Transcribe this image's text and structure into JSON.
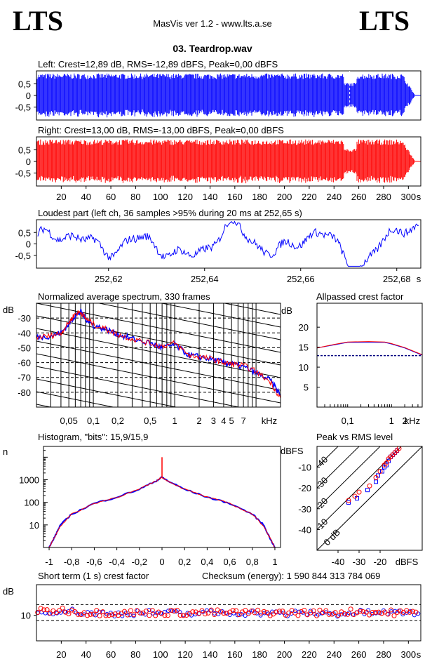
{
  "header": {
    "logo_left": "LTS",
    "logo_right": "LTS",
    "app_title": "MasVis ver 1.2 - www.lts.a.se",
    "file_title": "03. Teardrop.wav"
  },
  "colors": {
    "left": "#0000ff",
    "right": "#ff0000"
  },
  "chart_data": [
    {
      "id": "waveform-left",
      "type": "area",
      "title": "Left: Crest=12,89 dB, RMS=-12,89 dBFS, Peak=0,00 dBFS",
      "yticks": [
        "0,5",
        "0",
        "-0,5"
      ],
      "ylim": [
        -1,
        1
      ],
      "xlim": [
        0,
        310
      ],
      "color": "#0000ff",
      "annotations": [
        "loudest-part marker at 252,65 s"
      ]
    },
    {
      "id": "waveform-right",
      "type": "area",
      "title": "Right: Crest=13,00 dB, RMS=-13,00 dBFS, Peak=0,00 dBFS",
      "yticks": [
        "0,5",
        "0",
        "-0,5"
      ],
      "xticks": [
        "20",
        "40",
        "60",
        "80",
        "100",
        "120",
        "140",
        "160",
        "180",
        "200",
        "220",
        "240",
        "260",
        "280",
        "300",
        "s"
      ],
      "ylim": [
        -1,
        1
      ],
      "xlim": [
        0,
        310
      ],
      "color": "#ff0000"
    },
    {
      "id": "loudest-part",
      "type": "line",
      "title": "Loudest part (left  ch, 36 samples >95% during 20 ms at 252,65 s)",
      "yticks": [
        "0,5",
        "0",
        "-0,5"
      ],
      "xticks": [
        "252,62",
        "252,64",
        "252,66",
        "252,68",
        "s"
      ],
      "xlim": [
        252.605,
        252.685
      ],
      "ylim": [
        -1,
        1
      ],
      "color": "#0000ff"
    },
    {
      "id": "spectrum",
      "type": "line",
      "title": "Normalized average spectrum, 330 frames",
      "ylabel": "dB",
      "yticks": [
        "-30",
        "-40",
        "-50",
        "-60",
        "-70",
        "-80"
      ],
      "xticks": [
        "0,05",
        "0,1",
        "0,2",
        "0,5",
        "1",
        "2",
        "3",
        "4",
        "5",
        "7",
        "kHz"
      ],
      "xscale": "log",
      "xlim": [
        0.02,
        20
      ],
      "ylim": [
        -90,
        -20
      ],
      "series": [
        {
          "color": "#0000ff",
          "x": [
            0.02,
            0.03,
            0.04,
            0.05,
            0.06,
            0.07,
            0.08,
            0.1,
            0.15,
            0.2,
            0.3,
            0.5,
            0.7,
            1,
            1.5,
            2,
            3,
            4,
            5,
            7,
            10,
            15,
            20
          ],
          "y": [
            -43,
            -42,
            -40,
            -34,
            -28,
            -26,
            -30,
            -35,
            -38,
            -41,
            -44,
            -47,
            -50,
            -48,
            -55,
            -56,
            -58,
            -60,
            -61,
            -63,
            -67,
            -72,
            -82
          ]
        },
        {
          "color": "#ff0000",
          "x": [
            0.02,
            0.03,
            0.04,
            0.05,
            0.06,
            0.07,
            0.08,
            0.1,
            0.15,
            0.2,
            0.3,
            0.5,
            0.7,
            1,
            1.5,
            2,
            3,
            4,
            5,
            7,
            10,
            15,
            20
          ],
          "y": [
            -43,
            -42,
            -40,
            -33,
            -27,
            -26,
            -30,
            -34,
            -38,
            -41,
            -44,
            -47,
            -49,
            -47,
            -55,
            -56,
            -58,
            -60,
            -61,
            -62,
            -66,
            -73,
            -84
          ]
        }
      ]
    },
    {
      "id": "allpassed-crest",
      "type": "line",
      "title": "Allpassed crest factor",
      "ylabel": "dB",
      "yticks": [
        "20",
        "15",
        "10",
        "5"
      ],
      "xticks": [
        "0,1",
        "1",
        "2",
        "kHz"
      ],
      "xscale": "log",
      "xlim": [
        0.02,
        5
      ],
      "ylim": [
        0,
        26
      ],
      "series": [
        {
          "color": "#0000ff",
          "x": [
            0.02,
            0.05,
            0.1,
            0.3,
            0.7,
            1,
            2,
            5
          ],
          "y": [
            14.8,
            15.6,
            16.2,
            16.2,
            16.2,
            15.8,
            14.8,
            13.0
          ]
        },
        {
          "color": "#ff0000",
          "x": [
            0.02,
            0.05,
            0.1,
            0.3,
            0.7,
            1,
            2,
            5
          ],
          "y": [
            14.8,
            15.7,
            16.3,
            16.4,
            16.3,
            15.9,
            14.9,
            13.1
          ]
        }
      ],
      "reference_level": 12.9
    },
    {
      "id": "histogram",
      "type": "line",
      "title": "Histogram, \"bits\": 15,9/15,9",
      "ylabel": "n",
      "yticks": [
        "1000",
        "100",
        "10"
      ],
      "xticks": [
        "-1",
        "-0,8",
        "-0,6",
        "-0,4",
        "-0,2",
        "0",
        "0,2",
        "0,4",
        "0,6",
        "0,8",
        "1"
      ],
      "yscale": "log",
      "xlim": [
        -1.05,
        1.05
      ],
      "ylim": [
        1,
        30000
      ],
      "series": [
        {
          "color": "#0000ff",
          "x": [
            -1,
            -0.95,
            -0.9,
            -0.8,
            -0.6,
            -0.4,
            -0.2,
            -0.05,
            0,
            0.05,
            0.2,
            0.4,
            0.6,
            0.8,
            0.9,
            0.95,
            1
          ],
          "y": [
            1,
            3,
            10,
            30,
            90,
            170,
            380,
            900,
            1300,
            900,
            380,
            170,
            90,
            30,
            10,
            3,
            1
          ]
        },
        {
          "color": "#ff0000",
          "x": [
            -1,
            -0.95,
            -0.9,
            -0.8,
            -0.6,
            -0.4,
            -0.2,
            -0.05,
            0,
            0.05,
            0.2,
            0.4,
            0.6,
            0.8,
            0.9,
            0.95,
            1
          ],
          "y": [
            1,
            3,
            9,
            30,
            90,
            170,
            380,
            900,
            1300,
            900,
            380,
            170,
            90,
            30,
            9,
            3,
            1
          ]
        }
      ],
      "annotations": [
        "spike at 0 reaching ~10000"
      ]
    },
    {
      "id": "peak-vs-rms",
      "type": "scatter",
      "title": "Peak vs RMS level",
      "ylabel": "dBFS",
      "xlabel": "dBFS",
      "yticks": [
        "-10",
        "-20",
        "-30",
        "-40"
      ],
      "xticks": [
        "-40",
        "-30",
        "-20",
        "dBFS"
      ],
      "xlim": [
        -50,
        0
      ],
      "ylim": [
        -50,
        0
      ],
      "diagonal_labels": [
        "40",
        "30",
        "20",
        "10",
        "0 dB"
      ],
      "series": [
        {
          "color": "#0000ff",
          "x": [
            -35,
            -31,
            -26,
            -22,
            -21,
            -19,
            -18,
            -17,
            -16,
            -15,
            -14,
            -13,
            -12
          ],
          "y": [
            -27,
            -25,
            -21,
            -17,
            -14,
            -12,
            -10,
            -9,
            -7,
            -5,
            -4,
            -3,
            -2
          ]
        },
        {
          "color": "#ff0000",
          "x": [
            -35,
            -32,
            -30,
            -25,
            -22,
            -20,
            -18,
            -17,
            -16,
            -15,
            -14,
            -13,
            -12,
            -11
          ],
          "y": [
            -26,
            -24,
            -22,
            -19,
            -15,
            -12,
            -9,
            -8,
            -6,
            -5,
            -4,
            -3,
            -2,
            -1
          ]
        }
      ]
    },
    {
      "id": "short-term-crest",
      "type": "scatter",
      "title": "Short term (1 s) crest factor",
      "ylabel": "dB",
      "yticks": [
        "10"
      ],
      "xticks": [
        "20",
        "40",
        "60",
        "80",
        "100",
        "120",
        "140",
        "160",
        "180",
        "200",
        "220",
        "240",
        "260",
        "280",
        "300",
        "s"
      ],
      "xlim": [
        0,
        310
      ],
      "ylim": [
        0,
        22
      ],
      "reference_lines": [
        7.9,
        14.2
      ],
      "series": [
        {
          "color": "#0000ff",
          "x": [
            5,
            20,
            40,
            60,
            80,
            100,
            120,
            140,
            160,
            180,
            200,
            220,
            240,
            260,
            280,
            300
          ],
          "y": [
            11,
            12,
            11,
            10.5,
            11,
            11,
            10.5,
            11,
            11,
            11,
            10.5,
            11,
            10.5,
            11,
            11,
            11
          ]
        },
        {
          "color": "#ff0000",
          "x": [
            5,
            20,
            40,
            60,
            80,
            100,
            120,
            140,
            160,
            180,
            200,
            220,
            240,
            260,
            280,
            300
          ],
          "y": [
            11.5,
            12,
            11,
            11,
            11,
            11,
            11,
            11,
            11,
            11,
            11,
            11,
            11,
            11.5,
            11,
            11
          ]
        }
      ]
    }
  ],
  "checksum": "Checksum (energy):  1 590 844 313 784 069"
}
